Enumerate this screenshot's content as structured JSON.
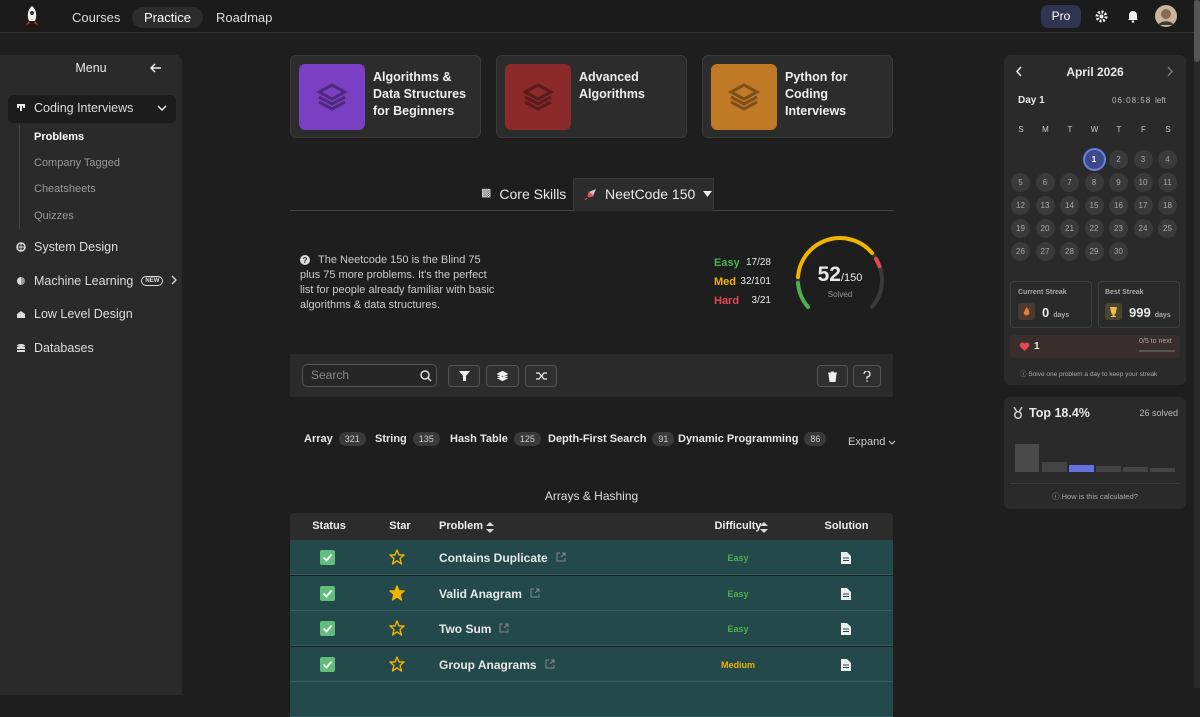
{
  "nav": {
    "links": [
      "Courses",
      "Practice",
      "Roadmap"
    ],
    "pro": "Pro"
  },
  "sidebar": {
    "title": "Menu",
    "main": "Coding Interviews",
    "sub": [
      "Problems",
      "Company Tagged",
      "Cheatsheets",
      "Quizzes"
    ],
    "items": [
      "System Design",
      "Machine Learning",
      "Low Level Design",
      "Databases"
    ],
    "badge": "NEW"
  },
  "courses": [
    "Algorithms & Data Structures for Beginners",
    "Advanced Algorithms",
    "Python for Coding Interviews"
  ],
  "tabs": [
    "Core Skills",
    "NeetCode 150"
  ],
  "info": "The Neetcode 150 is the Blind 75 plus 75 more problems. It's the perfect list for people already familiar with basic algorithms & data structures.",
  "progress": {
    "rows": [
      {
        "label": "Easy",
        "value": "17/28"
      },
      {
        "label": "Med",
        "value": "32/101"
      },
      {
        "label": "Hard",
        "value": "3/21"
      }
    ],
    "solved": "52",
    "total": "/150",
    "caption": "Solved"
  },
  "search_placeholder": "Search",
  "topics": [
    {
      "name": "Array",
      "count": 321
    },
    {
      "name": "String",
      "count": 135
    },
    {
      "name": "Hash Table",
      "count": 125
    },
    {
      "name": "Depth-First Search",
      "count": 91
    },
    {
      "name": "Dynamic Programming",
      "count": 86
    }
  ],
  "expand": "Expand",
  "section": "Arrays & Hashing",
  "table": {
    "headers": [
      "Status",
      "Star",
      "Problem",
      "Difficulty",
      "Solution"
    ],
    "rows": [
      {
        "problem": "Contains Duplicate",
        "difficulty": "Easy",
        "starred": false
      },
      {
        "problem": "Valid Anagram",
        "difficulty": "Easy",
        "starred": true
      },
      {
        "problem": "Two Sum",
        "difficulty": "Easy",
        "starred": false
      },
      {
        "problem": "Group Anagrams",
        "difficulty": "Medium",
        "starred": false
      }
    ]
  },
  "calendar": {
    "month": "April 2026",
    "day": "Day 1",
    "timer": "06:08:58",
    "timer_suffix": "left",
    "weekdays": [
      "S",
      "M",
      "T",
      "W",
      "T",
      "F",
      "S"
    ],
    "days": [
      1,
      2,
      3,
      4,
      5,
      6,
      7,
      8,
      9,
      10,
      11,
      12,
      13,
      14,
      15,
      16,
      17,
      18,
      19,
      20,
      21,
      22,
      23,
      24,
      25,
      26,
      27,
      28,
      29,
      30
    ]
  },
  "streaks": {
    "current": {
      "label": "Current Streak",
      "value": 0,
      "unit": "days"
    },
    "best": {
      "label": "Best Streak",
      "value": 999,
      "unit": "days"
    }
  },
  "hearts": {
    "value": 1,
    "next": "0/5 to next"
  },
  "streak_note": "Solve one problem a day to keep your streak",
  "rank": {
    "title": "Top 18.4%",
    "solved": "26 solved",
    "note": "How is this calculated?"
  }
}
